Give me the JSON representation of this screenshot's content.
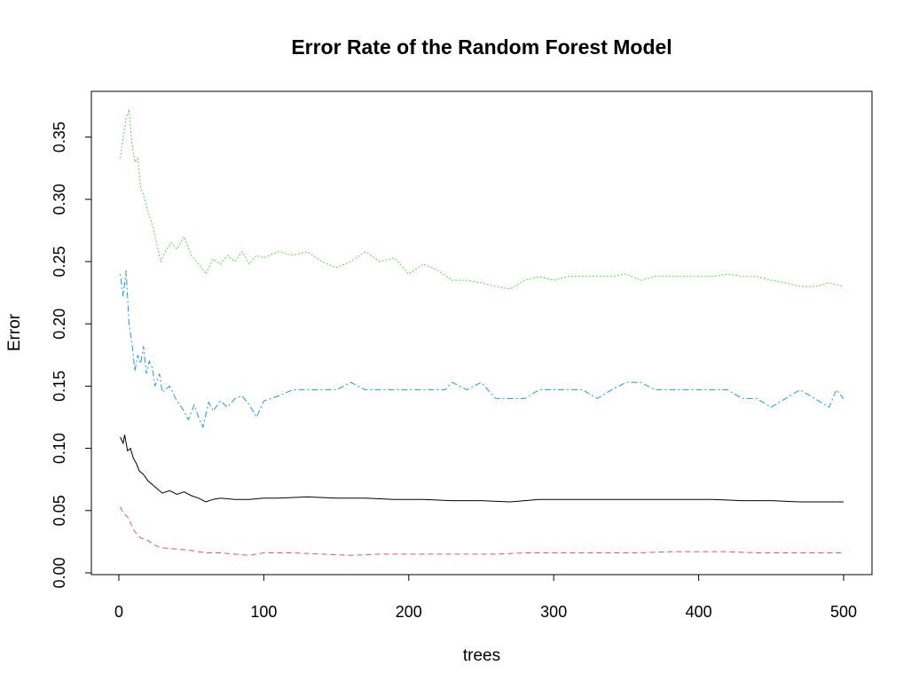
{
  "chart_data": {
    "type": "line",
    "title": "Error Rate of the Random Forest Model",
    "xlabel": "trees",
    "ylabel": "Error",
    "xlim": [
      0,
      500
    ],
    "ylim": [
      0,
      0.37
    ],
    "xticks": [
      0,
      100,
      200,
      300,
      400,
      500
    ],
    "yticks": [
      0.0,
      0.05,
      0.1,
      0.15,
      0.2,
      0.25,
      0.3,
      0.35
    ],
    "ytick_labels": [
      "0.00",
      "0.05",
      "0.10",
      "0.15",
      "0.20",
      "0.25",
      "0.30",
      "0.35"
    ],
    "grid": false,
    "legend": "none",
    "series": [
      {
        "color": "#DF536B",
        "dash": "dashed",
        "points": [
          [
            1,
            0.053
          ],
          [
            3,
            0.048
          ],
          [
            6,
            0.045
          ],
          [
            8,
            0.04
          ],
          [
            11,
            0.033
          ],
          [
            15,
            0.028
          ],
          [
            20,
            0.026
          ],
          [
            25,
            0.022
          ],
          [
            30,
            0.02
          ],
          [
            40,
            0.019
          ],
          [
            50,
            0.018
          ],
          [
            60,
            0.016
          ],
          [
            70,
            0.016
          ],
          [
            80,
            0.015
          ],
          [
            90,
            0.014
          ],
          [
            100,
            0.016
          ],
          [
            120,
            0.016
          ],
          [
            140,
            0.015
          ],
          [
            160,
            0.014
          ],
          [
            180,
            0.015
          ],
          [
            200,
            0.015
          ],
          [
            220,
            0.015
          ],
          [
            240,
            0.015
          ],
          [
            260,
            0.015
          ],
          [
            280,
            0.016
          ],
          [
            300,
            0.016
          ],
          [
            320,
            0.016
          ],
          [
            340,
            0.016
          ],
          [
            360,
            0.016
          ],
          [
            380,
            0.017
          ],
          [
            400,
            0.017
          ],
          [
            420,
            0.017
          ],
          [
            440,
            0.016
          ],
          [
            460,
            0.016
          ],
          [
            480,
            0.016
          ],
          [
            500,
            0.016
          ]
        ]
      },
      {
        "color": "#000000",
        "dash": "solid",
        "points": [
          [
            1,
            0.109
          ],
          [
            3,
            0.104
          ],
          [
            4,
            0.111
          ],
          [
            6,
            0.098
          ],
          [
            8,
            0.1
          ],
          [
            10,
            0.092
          ],
          [
            12,
            0.088
          ],
          [
            14,
            0.082
          ],
          [
            17,
            0.079
          ],
          [
            20,
            0.074
          ],
          [
            25,
            0.069
          ],
          [
            30,
            0.064
          ],
          [
            35,
            0.066
          ],
          [
            40,
            0.063
          ],
          [
            45,
            0.065
          ],
          [
            50,
            0.062
          ],
          [
            55,
            0.06
          ],
          [
            60,
            0.057
          ],
          [
            65,
            0.059
          ],
          [
            70,
            0.06
          ],
          [
            80,
            0.059
          ],
          [
            90,
            0.059
          ],
          [
            100,
            0.06
          ],
          [
            110,
            0.06
          ],
          [
            130,
            0.061
          ],
          [
            150,
            0.06
          ],
          [
            170,
            0.06
          ],
          [
            190,
            0.059
          ],
          [
            210,
            0.059
          ],
          [
            230,
            0.058
          ],
          [
            250,
            0.058
          ],
          [
            270,
            0.057
          ],
          [
            290,
            0.059
          ],
          [
            310,
            0.059
          ],
          [
            330,
            0.059
          ],
          [
            350,
            0.059
          ],
          [
            370,
            0.059
          ],
          [
            390,
            0.059
          ],
          [
            410,
            0.059
          ],
          [
            430,
            0.058
          ],
          [
            450,
            0.058
          ],
          [
            470,
            0.057
          ],
          [
            490,
            0.057
          ],
          [
            500,
            0.057
          ]
        ]
      },
      {
        "color": "#2297E6",
        "dash": "dotdash",
        "points": [
          [
            1,
            0.24
          ],
          [
            3,
            0.222
          ],
          [
            5,
            0.243
          ],
          [
            7,
            0.2
          ],
          [
            9,
            0.185
          ],
          [
            11,
            0.162
          ],
          [
            13,
            0.175
          ],
          [
            15,
            0.168
          ],
          [
            17,
            0.182
          ],
          [
            19,
            0.16
          ],
          [
            21,
            0.17
          ],
          [
            23,
            0.165
          ],
          [
            25,
            0.15
          ],
          [
            28,
            0.16
          ],
          [
            30,
            0.145
          ],
          [
            35,
            0.15
          ],
          [
            40,
            0.138
          ],
          [
            45,
            0.13
          ],
          [
            48,
            0.123
          ],
          [
            52,
            0.135
          ],
          [
            55,
            0.125
          ],
          [
            58,
            0.117
          ],
          [
            62,
            0.137
          ],
          [
            65,
            0.13
          ],
          [
            70,
            0.138
          ],
          [
            75,
            0.133
          ],
          [
            80,
            0.14
          ],
          [
            85,
            0.142
          ],
          [
            90,
            0.135
          ],
          [
            95,
            0.125
          ],
          [
            100,
            0.138
          ],
          [
            110,
            0.142
          ],
          [
            120,
            0.147
          ],
          [
            130,
            0.147
          ],
          [
            150,
            0.147
          ],
          [
            160,
            0.153
          ],
          [
            170,
            0.147
          ],
          [
            200,
            0.147
          ],
          [
            225,
            0.147
          ],
          [
            230,
            0.153
          ],
          [
            240,
            0.147
          ],
          [
            250,
            0.153
          ],
          [
            260,
            0.14
          ],
          [
            280,
            0.14
          ],
          [
            290,
            0.147
          ],
          [
            310,
            0.147
          ],
          [
            320,
            0.147
          ],
          [
            330,
            0.14
          ],
          [
            340,
            0.147
          ],
          [
            350,
            0.153
          ],
          [
            360,
            0.153
          ],
          [
            370,
            0.147
          ],
          [
            400,
            0.147
          ],
          [
            420,
            0.147
          ],
          [
            430,
            0.14
          ],
          [
            440,
            0.14
          ],
          [
            450,
            0.133
          ],
          [
            460,
            0.14
          ],
          [
            470,
            0.147
          ],
          [
            480,
            0.14
          ],
          [
            490,
            0.133
          ],
          [
            495,
            0.147
          ],
          [
            500,
            0.14
          ]
        ]
      },
      {
        "color": "#61D04F",
        "dash": "dotted",
        "points": [
          [
            1,
            0.333
          ],
          [
            3,
            0.35
          ],
          [
            5,
            0.365
          ],
          [
            7,
            0.372
          ],
          [
            9,
            0.345
          ],
          [
            11,
            0.33
          ],
          [
            13,
            0.333
          ],
          [
            15,
            0.31
          ],
          [
            18,
            0.3
          ],
          [
            20,
            0.29
          ],
          [
            23,
            0.28
          ],
          [
            26,
            0.265
          ],
          [
            29,
            0.25
          ],
          [
            32,
            0.258
          ],
          [
            36,
            0.265
          ],
          [
            40,
            0.26
          ],
          [
            45,
            0.27
          ],
          [
            50,
            0.255
          ],
          [
            55,
            0.248
          ],
          [
            60,
            0.24
          ],
          [
            65,
            0.252
          ],
          [
            70,
            0.248
          ],
          [
            75,
            0.255
          ],
          [
            80,
            0.25
          ],
          [
            85,
            0.258
          ],
          [
            90,
            0.248
          ],
          [
            95,
            0.255
          ],
          [
            100,
            0.253
          ],
          [
            110,
            0.258
          ],
          [
            120,
            0.255
          ],
          [
            130,
            0.258
          ],
          [
            140,
            0.25
          ],
          [
            150,
            0.245
          ],
          [
            160,
            0.25
          ],
          [
            170,
            0.258
          ],
          [
            180,
            0.25
          ],
          [
            190,
            0.253
          ],
          [
            200,
            0.24
          ],
          [
            210,
            0.248
          ],
          [
            220,
            0.243
          ],
          [
            230,
            0.235
          ],
          [
            240,
            0.235
          ],
          [
            250,
            0.233
          ],
          [
            260,
            0.23
          ],
          [
            270,
            0.228
          ],
          [
            280,
            0.235
          ],
          [
            290,
            0.238
          ],
          [
            300,
            0.235
          ],
          [
            310,
            0.238
          ],
          [
            320,
            0.238
          ],
          [
            330,
            0.238
          ],
          [
            340,
            0.238
          ],
          [
            350,
            0.24
          ],
          [
            360,
            0.235
          ],
          [
            370,
            0.238
          ],
          [
            380,
            0.238
          ],
          [
            390,
            0.238
          ],
          [
            400,
            0.238
          ],
          [
            410,
            0.238
          ],
          [
            420,
            0.24
          ],
          [
            430,
            0.238
          ],
          [
            440,
            0.238
          ],
          [
            450,
            0.235
          ],
          [
            460,
            0.233
          ],
          [
            470,
            0.23
          ],
          [
            480,
            0.23
          ],
          [
            490,
            0.233
          ],
          [
            500,
            0.23
          ]
        ]
      }
    ]
  }
}
